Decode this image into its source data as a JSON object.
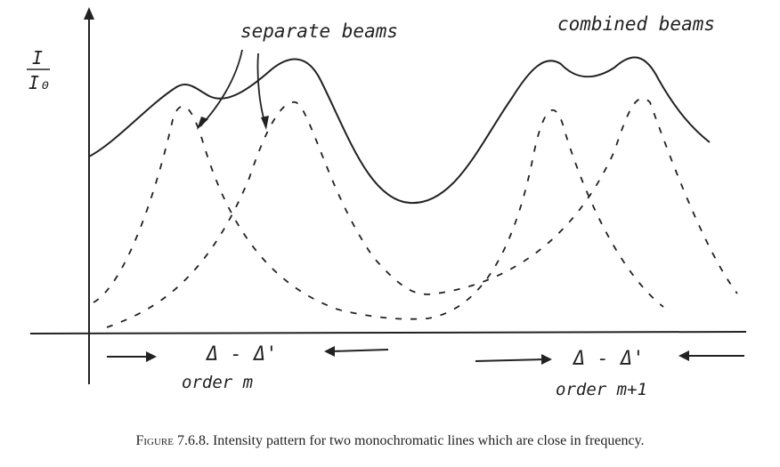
{
  "labels": {
    "y_axis_top": "I",
    "y_axis_bottom": "I₀",
    "separate": "separate beams",
    "combined": "combined beams",
    "delta_left": "Δ - Δ'",
    "delta_right": "Δ - Δ'",
    "order_left": "order m",
    "order_right": "order m+1"
  },
  "caption": {
    "label": "Figure 7.6.8.",
    "text": "Intensity pattern for two monochromatic lines which are close in frequency."
  },
  "colors": {
    "ink": "#222222",
    "background": "#ffffff"
  }
}
